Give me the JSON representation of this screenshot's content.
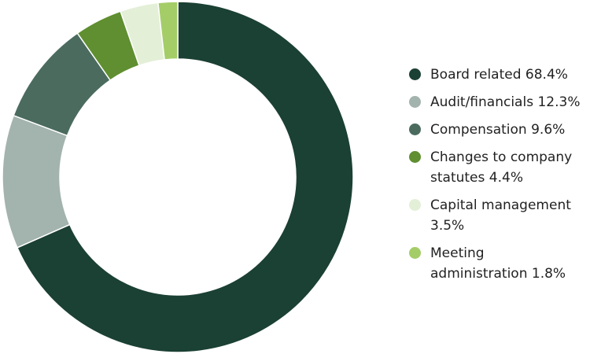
{
  "chart_data": {
    "type": "donut",
    "categories": [
      "Board related",
      "Audit/financials",
      "Compensation",
      "Changes to company statutes",
      "Capital management",
      "Meeting administration"
    ],
    "values": [
      68.4,
      12.3,
      9.6,
      4.4,
      3.5,
      1.8
    ],
    "value_labels": [
      "68.4%",
      "12.3%",
      "9.6%",
      "4.4%",
      "3.5%",
      "1.8%"
    ],
    "colors": [
      "#1b4034",
      "#a3b3ad",
      "#4b6b5f",
      "#5f8f30",
      "#e3efd7",
      "#a4cd68"
    ]
  }
}
